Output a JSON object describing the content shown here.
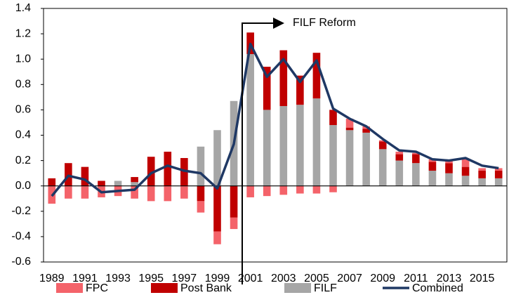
{
  "chart_data": {
    "type": "bar",
    "categories": [
      "1989",
      null,
      "1991",
      null,
      "1993",
      null,
      "1995",
      null,
      "1997",
      null,
      "1999",
      null,
      "2001",
      null,
      "2003",
      null,
      "2005",
      null,
      "2007",
      null,
      "2009",
      null,
      "2011",
      null,
      "2013",
      null,
      "2015",
      null
    ],
    "series": [
      {
        "name": "FPC",
        "color": "#f4636a",
        "values": [
          -0.14,
          -0.1,
          -0.1,
          -0.09,
          -0.08,
          -0.1,
          -0.12,
          -0.12,
          -0.1,
          -0.09,
          -0.1,
          -0.09,
          -0.09,
          -0.08,
          -0.07,
          -0.06,
          -0.06,
          -0.05,
          0.07,
          0.02,
          0.01,
          0.02,
          0.01,
          0.02,
          0.02,
          0.06,
          0.02,
          0.02
        ]
      },
      {
        "name": "Post Bank",
        "color": "#c00000",
        "values": [
          0.06,
          0.18,
          0.15,
          0.04,
          0,
          0.04,
          0.23,
          0.27,
          0.22,
          -0.12,
          -0.36,
          -0.25,
          0.17,
          0.34,
          0.44,
          0.23,
          0.36,
          0.12,
          0.02,
          0.03,
          0.06,
          0.05,
          0.07,
          0.07,
          0.08,
          0.07,
          0.06,
          0.06
        ]
      },
      {
        "name": "FILF",
        "color": "#a6a6a6",
        "values": [
          0,
          0,
          0,
          0,
          0.04,
          0.03,
          0,
          0,
          0,
          0.31,
          0.44,
          0.67,
          1.04,
          0.6,
          0.63,
          0.64,
          0.69,
          0.48,
          0.44,
          0.42,
          0.29,
          0.2,
          0.18,
          0.12,
          0.1,
          0.08,
          0.06,
          0.06
        ]
      },
      {
        "name": "Combined",
        "color": "#1f3864",
        "type": "line",
        "values": [
          -0.08,
          0.08,
          0.05,
          -0.05,
          -0.04,
          -0.03,
          0.1,
          0.16,
          0.12,
          0.1,
          -0.02,
          0.33,
          1.12,
          0.86,
          1.0,
          0.82,
          0.99,
          0.61,
          0.53,
          0.47,
          0.37,
          0.28,
          0.27,
          0.21,
          0.2,
          0.22,
          0.16,
          0.14
        ]
      }
    ],
    "stack_order": [
      "FILF",
      "Post Bank",
      "FPC"
    ],
    "ylim": [
      -0.6,
      1.4
    ],
    "yticks": [
      -0.6,
      -0.4,
      -0.2,
      {
        "value": 0,
        "label": "0.0"
      },
      0.2,
      0.4,
      0.6,
      0.8,
      {
        "value": 1,
        "label": "1.0"
      },
      1.2,
      1.4
    ],
    "annotation": "FILF Reform",
    "grid": false
  }
}
